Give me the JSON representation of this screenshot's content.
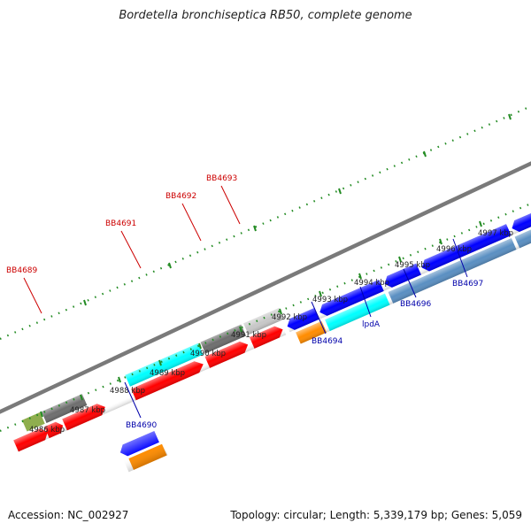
{
  "title": "Bordetella bronchiseptica RB50, complete genome",
  "footer": {
    "accession": "Accession: NC_002927",
    "summary": "Topology: circular; Length: 5,339,179 bp; Genes: 5,059"
  },
  "colors": {
    "background": "#ffffff",
    "backbone": "#7a7a7a",
    "tick": "#228b22",
    "label_top": "#cc0000",
    "label_bottom": "#0000aa",
    "red": "#ff0000",
    "cyan": "#00ffff",
    "gray": "#6e6e6e",
    "light_gray": "#c8c8c8",
    "blue": "#0000ff",
    "orange": "#ff8c00",
    "steel": "#5a8fc2",
    "olive": "#8fae4e"
  },
  "scale_labels": [
    "4986 kbp",
    "4987 kbp",
    "4988 kbp",
    "4989 kbp",
    "4990 kbp",
    "4991 kbp",
    "4992 kbp",
    "4993 kbp",
    "4994 kbp",
    "4995 kbp",
    "4996 kbp",
    "4997 kbp"
  ],
  "gene_labels_top": [
    "BB4689",
    "BB4691",
    "BB4692",
    "BB4693"
  ],
  "gene_labels_bottom": [
    "BB4690",
    "BB4694",
    "lpdA",
    "BB4696",
    "BB4697"
  ]
}
